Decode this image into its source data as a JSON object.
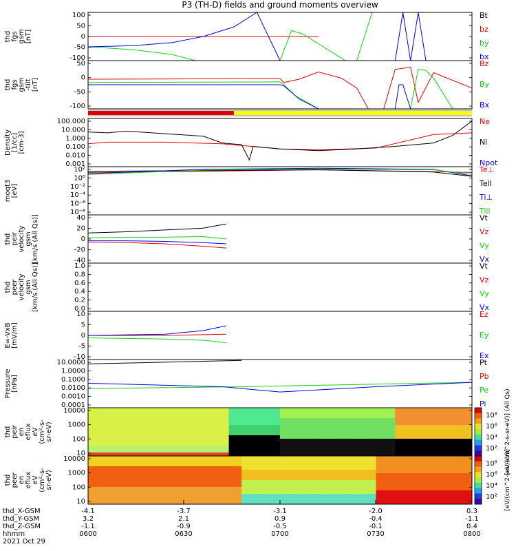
{
  "title": "P3 (TH-D) fields and ground moments overview",
  "colors": {
    "black": "#000000",
    "red": "#e00000",
    "green": "#10d010",
    "blue": "#0000e0",
    "yellow": "#ffff00"
  },
  "chart_data": [
    {
      "type": "line",
      "panel": "fgs",
      "ylabel": [
        "thd",
        "fgs",
        "gsm",
        "[nT]"
      ],
      "yticks": [
        "100",
        "50",
        "0",
        "-50",
        "-100"
      ],
      "ylim": [
        -100,
        100
      ],
      "series": [
        {
          "name": "Bt",
          "color": "#000000",
          "x": [
            0.0,
            0.6
          ],
          "y": [
            0,
            0
          ]
        },
        {
          "name": "bz",
          "color": "#e00000",
          "x": [
            0.0,
            0.6
          ],
          "y": [
            0,
            0
          ]
        },
        {
          "name": "by",
          "color": "#10d010",
          "x": [
            0.0,
            0.12,
            0.22,
            0.28,
            0.5,
            0.53,
            0.56,
            0.6,
            0.67,
            0.7,
            0.74
          ],
          "y": [
            -43,
            -55,
            -75,
            -100,
            -100,
            25,
            10,
            -30,
            -100,
            -100,
            100
          ]
        },
        {
          "name": "bx",
          "color": "#0000e0",
          "x": [
            0.0,
            0.12,
            0.22,
            0.3,
            0.38,
            0.43,
            0.44,
            0.5,
            0.6,
            0.8,
            0.82,
            0.84,
            0.86,
            0.88
          ],
          "y": [
            -43,
            -38,
            -25,
            0,
            40,
            90,
            100,
            -100,
            -100,
            -100,
            100,
            -100,
            100,
            -100
          ]
        }
      ]
    },
    {
      "type": "line",
      "panel": "fgs-gsm-tilted",
      "ylabel": [
        "thd",
        "fgs",
        "gsm",
        "-tilt",
        "[nT]"
      ],
      "yticks": [
        "50",
        "0",
        "-50",
        "-100"
      ],
      "ylim": [
        -120,
        100
      ],
      "series": [
        {
          "name": "Bz",
          "color": "#e00000",
          "x": [
            0.0,
            0.5,
            0.51,
            0.55,
            0.6,
            0.66,
            0.7,
            0.73,
            0.75,
            0.77,
            0.8,
            0.84,
            0.86,
            0.9,
            1.0
          ],
          "y": [
            15,
            18,
            0,
            15,
            48,
            20,
            -25,
            -120,
            -120,
            -120,
            60,
            70,
            -90,
            45,
            -25
          ]
        },
        {
          "name": "By",
          "color": "#10d010",
          "x": [
            0.0,
            0.5,
            0.51,
            0.54,
            0.6,
            0.66,
            0.75,
            0.8,
            0.84,
            0.86,
            0.88,
            0.9,
            0.95
          ],
          "y": [
            0,
            3,
            -10,
            -60,
            -120,
            -120,
            -120,
            -120,
            -120,
            60,
            55,
            20,
            -120
          ]
        },
        {
          "name": "Bx",
          "color": "#0000e0",
          "x": [
            0.0,
            0.5,
            0.51,
            0.55,
            0.6,
            0.66,
            0.75,
            0.8,
            0.81,
            0.82,
            0.84,
            0.86
          ],
          "y": [
            -10,
            -10,
            -15,
            -75,
            -120,
            -120,
            -120,
            -120,
            -10,
            -10,
            -120,
            -120
          ]
        }
      ]
    },
    {
      "type": "line",
      "panel": "density",
      "ylabel": [
        "Density",
        "[1/cc]",
        "[cm-3]"
      ],
      "yticks": [
        "100.000",
        "10.000",
        "1.000",
        "0.100",
        "0.010",
        "0.001"
      ],
      "ylim_log10": [
        -3.2,
        2.5
      ],
      "series": [
        {
          "name": "Ne",
          "color": "#e00000",
          "x": [
            0.0,
            0.05,
            0.2,
            0.35,
            0.5,
            0.6,
            0.75,
            0.9,
            1.0
          ],
          "y_log10": [
            -0.5,
            -0.3,
            -0.3,
            -0.5,
            -1.1,
            -1.2,
            -1.0,
            0.6,
            0.8
          ]
        },
        {
          "name": "Ni",
          "color": "#000000",
          "x": [
            0.0,
            0.05,
            0.1,
            0.2,
            0.3,
            0.35,
            0.4,
            0.42,
            0.43,
            0.5,
            0.6,
            0.7,
            0.8,
            0.9,
            0.95,
            1.0
          ],
          "y_log10": [
            0.9,
            0.8,
            1.0,
            0.7,
            0.4,
            -0.4,
            -0.6,
            -2.4,
            -0.8,
            -1.1,
            -1.3,
            -1.1,
            -0.8,
            -0.4,
            0.5,
            2.2
          ]
        },
        {
          "name": "Npot",
          "color": "#0000e0",
          "x": [],
          "y_log10": []
        }
      ]
    },
    {
      "type": "line",
      "panel": "temperature",
      "ylabel": [
        "moqt3",
        "[eV]"
      ],
      "yticks": [
        "10²",
        "10⁰",
        "10⁻²",
        "10⁻⁴",
        "10⁻⁶",
        "10⁻⁸"
      ],
      "ylim_log10": [
        -9.5,
        3
      ],
      "series": [
        {
          "name": "Te⊥",
          "color": "#e00000",
          "x": [
            0.0,
            0.3,
            0.6,
            0.9,
            1.0
          ],
          "y_log10": [
            1.5,
            1.8,
            2.2,
            1.7,
            1.5
          ]
        },
        {
          "name": "Tell",
          "color": "#000000",
          "x": [
            0.0,
            0.3,
            0.6,
            0.9,
            1.0
          ],
          "y_log10": [
            1.8,
            2.0,
            2.2,
            1.6,
            0.5
          ]
        },
        {
          "name": "Ti⊥",
          "color": "#0000e0",
          "x": [
            0.0,
            0.3,
            0.6,
            0.9,
            1.0
          ],
          "y_log10": [
            1.2,
            2.3,
            2.6,
            2.3,
            0.6
          ]
        },
        {
          "name": "Till",
          "color": "#10d010",
          "x": [
            0.0,
            0.3,
            0.6,
            0.9,
            1.0
          ],
          "y_log10": [
            1.0,
            2.1,
            2.4,
            2.2,
            1.0
          ]
        }
      ]
    },
    {
      "type": "line",
      "panel": "peir-velocity",
      "ylabel": [
        "thd",
        "peir",
        "velocity",
        "gsm",
        "[km/s (All Qs)]"
      ],
      "yticks": [
        "40",
        "20",
        "0",
        "-20",
        "-40"
      ],
      "ylim": [
        -40,
        40
      ],
      "series": [
        {
          "name": "Vt",
          "color": "#000000",
          "x": [
            0.0,
            0.1,
            0.2,
            0.3,
            0.36
          ],
          "y": [
            10,
            12,
            15,
            18,
            25
          ]
        },
        {
          "name": "Vz",
          "color": "#e00000",
          "x": [
            0.0,
            0.1,
            0.2,
            0.3,
            0.36
          ],
          "y": [
            -5,
            -6,
            -8,
            -12,
            -15
          ]
        },
        {
          "name": "Vy",
          "color": "#10d010",
          "x": [
            0.0,
            0.1,
            0.2,
            0.3,
            0.36
          ],
          "y": [
            2,
            3,
            3,
            4,
            0
          ]
        },
        {
          "name": "Vx",
          "color": "#0000e0",
          "x": [
            0.0,
            0.1,
            0.2,
            0.3,
            0.36
          ],
          "y": [
            -3,
            -3,
            -4,
            -6,
            -8
          ]
        }
      ]
    },
    {
      "type": "line",
      "panel": "peer-velocity",
      "ylabel": [
        "thd",
        "peer",
        "velocity",
        "gsm",
        "[km/s (All Qs)]"
      ],
      "yticks": [
        "1.0",
        "0.8",
        "0.6",
        "0.4",
        "0.2",
        "0.0"
      ],
      "ylim": [
        0,
        1
      ],
      "series": [
        {
          "name": "Vt",
          "color": "#000000",
          "x": [],
          "y": []
        },
        {
          "name": "Vz",
          "color": "#e00000",
          "x": [],
          "y": []
        },
        {
          "name": "Vy",
          "color": "#10d010",
          "x": [],
          "y": []
        },
        {
          "name": "Vx",
          "color": "#0000e0",
          "x": [],
          "y": []
        }
      ]
    },
    {
      "type": "line",
      "panel": "efield",
      "ylabel": [
        "E=-VxB",
        "[mV/m]"
      ],
      "yticks": [
        "10",
        "5",
        "0",
        "-5",
        "-10"
      ],
      "ylim": [
        -10,
        10
      ],
      "series": [
        {
          "name": "Ez",
          "color": "#e00000",
          "x": [
            0.0,
            0.2,
            0.36
          ],
          "y": [
            0,
            0,
            0.5
          ]
        },
        {
          "name": "Ey",
          "color": "#10d010",
          "x": [
            0.0,
            0.2,
            0.3,
            0.36
          ],
          "y": [
            -1,
            -1.5,
            -2,
            -3
          ]
        },
        {
          "name": "Ex",
          "color": "#0000e0",
          "x": [
            0.0,
            0.2,
            0.3,
            0.36
          ],
          "y": [
            0,
            0.5,
            2,
            4
          ]
        }
      ]
    },
    {
      "type": "line",
      "panel": "pressure",
      "ylabel": [
        "Pressure",
        "[nPa]"
      ],
      "yticks": [
        "10.0000",
        "1.0000",
        "0.1000",
        "0.0100",
        "0.0010",
        "0.0001"
      ],
      "ylim_log10": [
        -4.2,
        1.3
      ],
      "series": [
        {
          "name": "Pt",
          "color": "#000000",
          "x": [
            0.0,
            0.4
          ],
          "y_log10": [
            0.8,
            1.2
          ]
        },
        {
          "name": "Pb",
          "color": "#e00000",
          "x": [],
          "y_log10": []
        },
        {
          "name": "Pe",
          "color": "#10d010",
          "x": [
            0.0,
            0.4,
            1.0
          ],
          "y_log10": [
            -2.0,
            -1.8,
            -1.3
          ]
        },
        {
          "name": "Pi",
          "color": "#0000e0",
          "x": [
            0.0,
            0.35,
            0.5,
            0.75,
            1.0
          ],
          "y_log10": [
            -1.4,
            -1.8,
            -2.4,
            -1.8,
            -1.3
          ]
        }
      ]
    },
    {
      "type": "heatmap",
      "panel": "peir-spectrogram",
      "ylabel": [
        "thd",
        "peir",
        "en",
        "eflux",
        "eV",
        "(cm²-s-",
        "sr-eV)"
      ],
      "yticks": [
        "10000",
        "1000",
        "100",
        "10"
      ],
      "colorbar_label": "[eV/(cm^2-s-sr-eV)] (All Qs)",
      "colorbar_ticks": [
        "10⁸",
        "10⁶",
        "10⁴",
        "10²"
      ]
    },
    {
      "type": "heatmap",
      "panel": "peer-spectrogram",
      "ylabel": [
        "thd",
        "peer",
        "en",
        "eflux",
        "eV",
        "(cm²-s-",
        "sr-eV)"
      ],
      "yticks": [
        "10000",
        "1000",
        "100",
        "10"
      ],
      "colorbar_label": "[eV/(cm^2-s-sr-eV)]",
      "colorbar_ticks": [
        "10⁸",
        "10⁶",
        "10⁴",
        "10²"
      ]
    }
  ],
  "xaxis": {
    "row_labels": [
      "thd_X-GSM",
      "thd_Y-GSM",
      "thd_Z-GSM",
      "hhmm",
      "2021 Oct 29"
    ],
    "columns": [
      {
        "values": [
          "-4.1",
          "3.2",
          "-1.1",
          "0600"
        ]
      },
      {
        "values": [
          "-3.7",
          "2.1",
          "-0.9",
          "0630"
        ]
      },
      {
        "values": [
          "-3.1",
          "0.9",
          "-0.5",
          "0700"
        ]
      },
      {
        "values": [
          "-2.0",
          "-0.4",
          "-0.1",
          "0730"
        ]
      },
      {
        "values": [
          "0.3",
          "-1.1",
          "0.4",
          "0800"
        ]
      }
    ]
  }
}
